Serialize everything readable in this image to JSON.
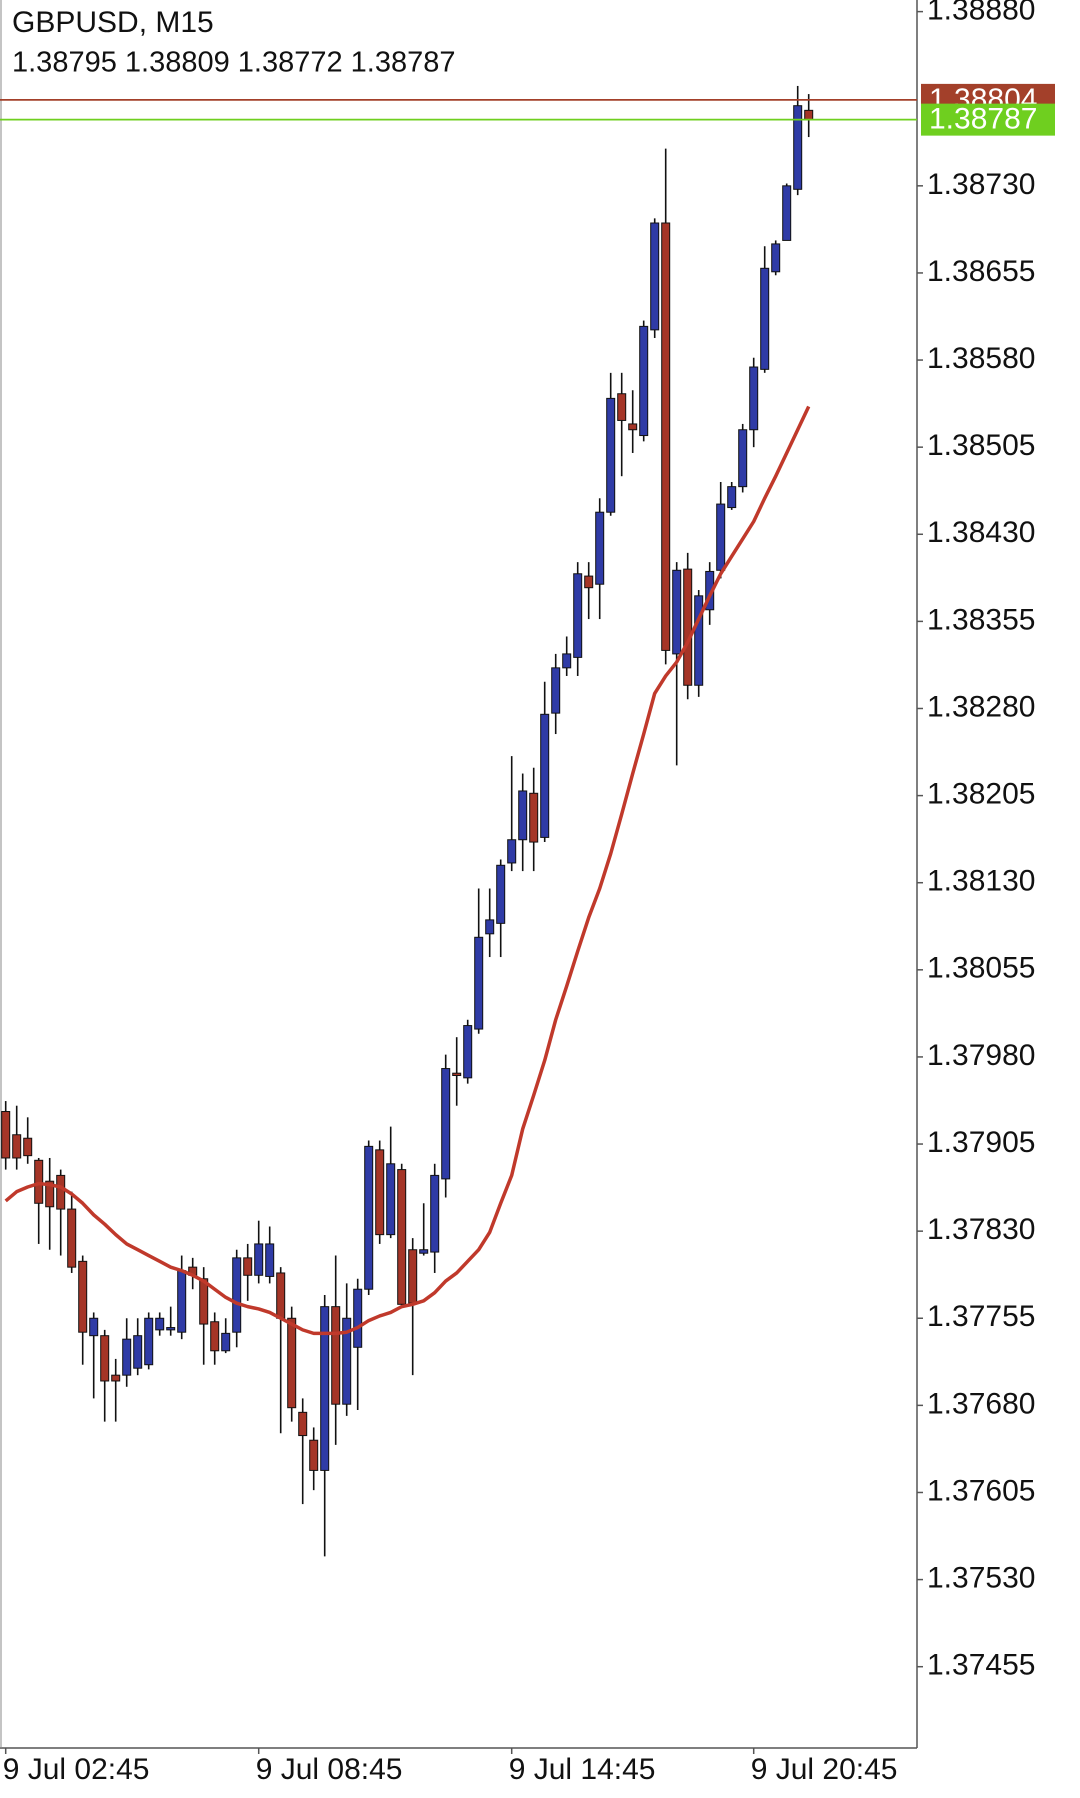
{
  "chart_data": {
    "type": "candlestick",
    "title": "GBPUSD, M15",
    "subtitle": "1.38795 1.38809 1.38772 1.38787",
    "categories": [
      "9 Jul 02:45",
      null,
      null,
      null,
      null,
      null,
      null,
      null,
      null,
      null,
      null,
      null,
      null,
      null,
      null,
      null,
      null,
      null,
      null,
      null,
      null,
      null,
      null,
      "9 Jul 08:45",
      null,
      null,
      null,
      null,
      null,
      null,
      null,
      null,
      null,
      null,
      null,
      null,
      null,
      null,
      null,
      null,
      null,
      null,
      null,
      null,
      null,
      null,
      "9 Jul 14:45",
      null,
      null,
      null,
      null,
      null,
      null,
      null,
      null,
      null,
      null,
      null,
      null,
      null,
      null,
      null,
      null,
      null,
      null,
      null,
      null,
      null,
      "9 Jul 20:45",
      null,
      null,
      null,
      null,
      null
    ],
    "open": [
      1.37933,
      1.37913,
      1.3791,
      1.37891,
      1.37873,
      1.37878,
      1.37849,
      1.37804,
      1.3774,
      1.3774,
      1.37706,
      1.37706,
      1.37712,
      1.37715,
      1.37745,
      1.37745,
      1.37743,
      1.37799,
      1.37789,
      1.37752,
      1.37727,
      1.37743,
      1.37807,
      1.37792,
      1.37791,
      1.37794,
      1.37755,
      1.37674,
      1.3765,
      1.37624,
      1.37765,
      1.37681,
      1.3773,
      1.3778,
      1.379,
      1.37827,
      1.37883,
      1.37814,
      1.37811,
      1.37812,
      1.37875,
      1.37966,
      1.37962,
      1.38004,
      1.38086,
      1.38095,
      1.38147,
      1.38167,
      1.38207,
      1.38169,
      1.38276,
      1.38315,
      1.38324,
      1.38394,
      1.38387,
      1.38449,
      1.38551,
      1.38525,
      1.38515,
      1.38606,
      1.38698,
      1.38327,
      1.384,
      1.383,
      1.38365,
      1.38399,
      1.38453,
      1.38471,
      1.3852,
      1.38572,
      1.38656,
      1.38683,
      1.38727,
      1.38795
    ],
    "high": [
      1.37942,
      1.37938,
      1.37928,
      1.37893,
      1.37893,
      1.37883,
      1.37864,
      1.37809,
      1.3776,
      1.37745,
      1.3772,
      1.37755,
      1.37755,
      1.3776,
      1.3776,
      1.37765,
      1.37809,
      1.37807,
      1.37799,
      1.3776,
      1.37755,
      1.37814,
      1.37819,
      1.37839,
      1.37834,
      1.37799,
      1.37765,
      1.37686,
      1.37661,
      1.37775,
      1.37809,
      1.37785,
      1.37789,
      1.37908,
      1.37908,
      1.3792,
      1.37888,
      1.37824,
      1.37854,
      1.37888,
      1.37982,
      1.37997,
      1.38012,
      1.38125,
      1.38125,
      1.3815,
      1.38239,
      1.38224,
      1.38229,
      1.38303,
      1.38327,
      1.38342,
      1.38406,
      1.38406,
      1.38461,
      1.38569,
      1.38569,
      1.38554,
      1.38614,
      1.38702,
      1.38762,
      1.38406,
      1.38414,
      1.38382,
      1.38406,
      1.38475,
      1.38475,
      1.38525,
      1.38582,
      1.38678,
      1.38683,
      1.38732,
      1.38816,
      1.38809
    ],
    "low": [
      1.37883,
      1.37883,
      1.37888,
      1.37819,
      1.37814,
      1.37809,
      1.37794,
      1.37715,
      1.37686,
      1.37666,
      1.37666,
      1.37696,
      1.37706,
      1.37711,
      1.3774,
      1.3774,
      1.37737,
      1.3778,
      1.37715,
      1.37715,
      1.37725,
      1.3773,
      1.3777,
      1.37785,
      1.37785,
      1.37656,
      1.37666,
      1.37595,
      1.37607,
      1.3755,
      1.37646,
      1.37671,
      1.37676,
      1.37775,
      1.37819,
      1.37824,
      1.37765,
      1.37706,
      1.37809,
      1.37794,
      1.37859,
      1.37938,
      1.37957,
      1.38,
      1.38066,
      1.38066,
      1.3814,
      1.3814,
      1.3814,
      1.38165,
      1.38258,
      1.38308,
      1.38308,
      1.38357,
      1.38357,
      1.38446,
      1.3848,
      1.385,
      1.3851,
      1.38599,
      1.38318,
      1.38231,
      1.38288,
      1.3829,
      1.38352,
      1.38392,
      1.38451,
      1.38466,
      1.38505,
      1.38569,
      1.38653,
      1.38683,
      1.38722,
      1.38772
    ],
    "close": [
      1.37893,
      1.37893,
      1.37895,
      1.37854,
      1.37851,
      1.37849,
      1.37799,
      1.37743,
      1.37755,
      1.37701,
      1.37701,
      1.37737,
      1.3774,
      1.37755,
      1.37755,
      1.37747,
      1.37796,
      1.37792,
      1.3775,
      1.37727,
      1.37742,
      1.37807,
      1.37792,
      1.37819,
      1.37819,
      1.37755,
      1.37678,
      1.37654,
      1.37624,
      1.37765,
      1.37681,
      1.37755,
      1.3778,
      1.37903,
      1.37827,
      1.37888,
      1.37767,
      1.37768,
      1.37814,
      1.37878,
      1.3797,
      1.37964,
      1.38007,
      1.38083,
      1.38098,
      1.38145,
      1.38167,
      1.38209,
      1.38165,
      1.38275,
      1.38315,
      1.38327,
      1.38396,
      1.38384,
      1.38449,
      1.38547,
      1.38528,
      1.3852,
      1.38609,
      1.38698,
      1.3833,
      1.38399,
      1.383,
      1.38377,
      1.38398,
      1.38456,
      1.38471,
      1.3852,
      1.38574,
      1.38659,
      1.3868,
      1.3873,
      1.38799,
      1.38787
    ],
    "up_color": "#2f3ba6",
    "down_color": "#a53527",
    "ma": {
      "color": "#c0392b",
      "values": [
        1.37856,
        1.37864,
        1.37868,
        1.37871,
        1.3787,
        1.37868,
        1.37862,
        1.37854,
        1.37844,
        1.37836,
        1.37827,
        1.37819,
        1.37814,
        1.37809,
        1.37804,
        1.37799,
        1.37796,
        1.37792,
        1.37787,
        1.3778,
        1.37773,
        1.37768,
        1.37765,
        1.37763,
        1.3776,
        1.37755,
        1.3775,
        1.37745,
        1.37742,
        1.37742,
        1.37742,
        1.37743,
        1.37747,
        1.37753,
        1.37757,
        1.3776,
        1.37765,
        1.37767,
        1.3777,
        1.37777,
        1.37787,
        1.37794,
        1.37804,
        1.37814,
        1.37829,
        1.37854,
        1.37878,
        1.37918,
        1.37947,
        1.37977,
        1.38012,
        1.38041,
        1.38071,
        1.381,
        1.38125,
        1.38155,
        1.38189,
        1.38224,
        1.38258,
        1.38293,
        1.38308,
        1.3832,
        1.38337,
        1.38357,
        1.38377,
        1.38396,
        1.38411,
        1.38426,
        1.38441,
        1.38461,
        1.3848,
        1.385,
        1.3852,
        1.3854
      ]
    },
    "price_lines": [
      {
        "value": 1.38804,
        "color": "#a3402a"
      },
      {
        "value": 1.38787,
        "color": "#6fcf1f"
      }
    ],
    "ylim": [
      1.37385,
      1.3889
    ],
    "yticks": [
      {
        "value": 1.3888,
        "label": "1.38880"
      },
      {
        "value": 1.3873,
        "label": "1.38730"
      },
      1.38655,
      {
        "value": 1.3858,
        "label": "1.38580"
      },
      1.38505,
      {
        "value": 1.3843,
        "label": "1.38430"
      },
      1.38355,
      {
        "value": 1.3828,
        "label": "1.38280"
      },
      1.38205,
      {
        "value": 1.3813,
        "label": "1.38130"
      },
      1.38055,
      {
        "value": 1.3798,
        "label": "1.37980"
      },
      1.37905,
      {
        "value": 1.3783,
        "label": "1.37830"
      },
      1.37755,
      {
        "value": 1.3768,
        "label": "1.37680"
      },
      1.37605,
      {
        "value": 1.3753,
        "label": "1.37530"
      },
      1.37455
    ]
  }
}
